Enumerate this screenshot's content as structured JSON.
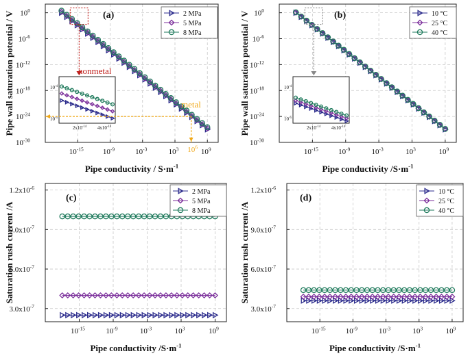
{
  "chart_data": [
    {
      "id": "a",
      "type": "line",
      "label": "(a)",
      "xlabel": "Pipe conductivity / S·m",
      "xlabel_sup": "-1",
      "ylabel": "Pipe wall saturation potential / V",
      "yscale": "log",
      "xlim_exp": [
        -21,
        11
      ],
      "ylim_exp": [
        -30,
        2
      ],
      "x_tick_exps": [
        -15,
        -9,
        -3,
        3,
        9
      ],
      "y_tick_exps": [
        0,
        -6,
        -12,
        -18,
        -24,
        -30
      ],
      "legend": [
        "2 MPa",
        "5 MPa",
        "8 MPa"
      ],
      "series": [
        {
          "name": "2 MPa",
          "marker": "triangle-right",
          "color": "#2b2b8c",
          "x_exp_range": [
            -18,
            9
          ],
          "y_exp_start": 0.0,
          "slope": -1.0
        },
        {
          "name": "5 MPa",
          "marker": "diamond",
          "color": "#7b2f9b",
          "x_exp_range": [
            -18,
            9
          ],
          "y_exp_start": 0.25,
          "slope": -1.0
        },
        {
          "name": "8 MPa",
          "marker": "circle",
          "color": "#1f7a5c",
          "x_exp_range": [
            -18,
            9
          ],
          "y_exp_start": 0.5,
          "slope": -1.0
        }
      ],
      "annotations": {
        "nonmetal": "nonmetal",
        "metal": "metal",
        "metal_tick": "10",
        "metal_tick_sup": "6"
      },
      "inset": {
        "y_ticks": [
          "10",
          "10"
        ],
        "y_ticks_sup": [
          "-4",
          "-5"
        ],
        "x_ticks": [
          "2x10",
          "4x10"
        ],
        "x_ticks_sup": [
          "-14",
          "-14"
        ]
      }
    },
    {
      "id": "b",
      "type": "line",
      "label": "(b)",
      "xlabel": "Pipe conductivity /S·m",
      "xlabel_sup": "-1",
      "ylabel": "Pipe wall saturation potential / V",
      "yscale": "log",
      "xlim_exp": [
        -21,
        11
      ],
      "ylim_exp": [
        -30,
        2
      ],
      "x_tick_exps": [
        -15,
        -9,
        -3,
        3,
        9
      ],
      "y_tick_exps": [
        0,
        -6,
        -12,
        -18,
        -24,
        -30
      ],
      "legend": [
        "10 °C",
        "25 °C",
        "40 °C"
      ],
      "series": [
        {
          "name": "10 °C",
          "marker": "triangle-right",
          "color": "#2b2b8c",
          "x_exp_range": [
            -18,
            9
          ],
          "y_exp_start": 0.0,
          "slope": -1.0
        },
        {
          "name": "25 °C",
          "marker": "diamond",
          "color": "#7b2f9b",
          "x_exp_range": [
            -18,
            9
          ],
          "y_exp_start": 0.05,
          "slope": -1.0
        },
        {
          "name": "40 °C",
          "marker": "circle",
          "color": "#1f7a5c",
          "x_exp_range": [
            -18,
            9
          ],
          "y_exp_start": 0.1,
          "slope": -1.0
        }
      ],
      "inset": {
        "y_ticks": [
          "10",
          "10"
        ],
        "y_ticks_sup": [
          "-4",
          "-5"
        ],
        "x_ticks": [
          "2x10",
          "4x10"
        ],
        "x_ticks_sup": [
          "-14",
          "-14"
        ]
      }
    },
    {
      "id": "c",
      "type": "line",
      "label": "(c)",
      "xlabel": "Pipe conductivity /S·m",
      "xlabel_sup": "-1",
      "ylabel": "Saturation rush current /A",
      "xlim_exp": [
        -21,
        11
      ],
      "ylim": [
        2e-07,
        1.25e-06
      ],
      "y_ticks": [
        3e-07,
        6e-07,
        9e-07,
        1.2e-06
      ],
      "y_tick_labels": [
        "3.0x10",
        "6.0x10",
        "9.0x10",
        "1.2x10"
      ],
      "y_tick_sups": [
        "-7",
        "-7",
        "-7",
        "-6"
      ],
      "x_tick_exps": [
        -15,
        -9,
        -3,
        3,
        9
      ],
      "legend": [
        "2 MPa",
        "5 MPa",
        "8 MPa"
      ],
      "series": [
        {
          "name": "2 MPa",
          "marker": "triangle-right",
          "color": "#2b2b8c",
          "x_exp_range": [
            -18,
            9
          ],
          "value": 2.5e-07
        },
        {
          "name": "5 MPa",
          "marker": "diamond",
          "color": "#7b2f9b",
          "x_exp_range": [
            -18,
            9
          ],
          "value": 4e-07
        },
        {
          "name": "8 MPa",
          "marker": "circle",
          "color": "#1f7a5c",
          "x_exp_range": [
            -18,
            9
          ],
          "value": 1e-06
        }
      ]
    },
    {
      "id": "d",
      "type": "line",
      "label": "(d)",
      "xlabel": "Pipe conductivity /S·m",
      "xlabel_sup": "-1",
      "ylabel": "Saturation rush current /A",
      "xlim_exp": [
        -21,
        11
      ],
      "ylim": [
        2e-07,
        1.25e-06
      ],
      "y_ticks": [
        3e-07,
        6e-07,
        9e-07,
        1.2e-06
      ],
      "y_tick_labels": [
        "3.0x10",
        "6.0x10",
        "9.0x10",
        "1.2x10"
      ],
      "y_tick_sups": [
        "-7",
        "-7",
        "-7",
        "-6"
      ],
      "x_tick_exps": [
        -15,
        -9,
        -3,
        3,
        9
      ],
      "legend": [
        "10 °C",
        "25 °C",
        "40 °C"
      ],
      "series": [
        {
          "name": "10 °C",
          "marker": "triangle-right",
          "color": "#2b2b8c",
          "x_exp_range": [
            -18,
            9
          ],
          "value": 3.6e-07
        },
        {
          "name": "25 °C",
          "marker": "diamond",
          "color": "#7b2f9b",
          "x_exp_range": [
            -18,
            9
          ],
          "value": 3.9e-07
        },
        {
          "name": "40 °C",
          "marker": "circle",
          "color": "#1f7a5c",
          "x_exp_range": [
            -18,
            9
          ],
          "value": 4.4e-07
        }
      ]
    }
  ]
}
